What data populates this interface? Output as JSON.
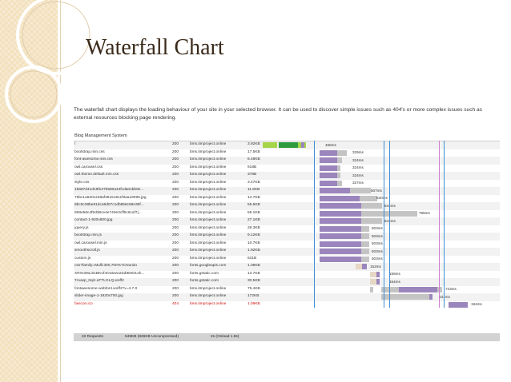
{
  "slide": {
    "title": "Waterfall Chart",
    "description": "The waterfall chart displays the loading behaviour of your site in your selected browser. It can be used to discover simple issues such as 404's or more complex issues such as external resources blocking page rendering.",
    "section_label": "Blog Management System"
  },
  "colors": {
    "background_band": "#f3e1bd",
    "dns": "#a6d54a",
    "connect": "#2e9b3f",
    "wait": "#9b85bd",
    "receive": "#c4c4c4",
    "blocked": "#e6d8c5",
    "error": "#d01010"
  },
  "requests": [
    {
      "name": "/",
      "status": "200",
      "domain": "bms.itmproject.online",
      "size": "3.92KB",
      "time": "486ms"
    },
    {
      "name": "bootstrap.min.css",
      "status": "200",
      "domain": "bms.itmproject.online",
      "size": "17.5KB",
      "time": "329ms"
    },
    {
      "name": "font-awesome.min.css",
      "status": "200",
      "domain": "bms.itmproject.online",
      "size": "6.48KB",
      "time": "324ms"
    },
    {
      "name": "owl.carousel.css",
      "status": "200",
      "domain": "bms.itmproject.online",
      "size": "918B",
      "time": "324ms"
    },
    {
      "name": "owl.theme.default.min.css",
      "status": "200",
      "domain": "bms.itmproject.online",
      "size": "378B",
      "time": "324ms"
    },
    {
      "name": "style.css",
      "status": "200",
      "domain": "bms.itmproject.online",
      "size": "3.47KB",
      "time": "327ms"
    },
    {
      "name": "1b687d41d18fe27b580a43fcda01bb9e...",
      "status": "200",
      "domain": "bms.itmproject.online",
      "size": "11.6KB",
      "time": "507ms"
    },
    {
      "name": "76bc1a630c238af38151811f9aa19095.jpg",
      "status": "200",
      "domain": "bms.itmproject.online",
      "size": "14.7KB",
      "time": "530ms"
    },
    {
      "name": "8bc5c38be81dca9d07c1db858c69e39f...",
      "status": "200",
      "domain": "bms.itmproject.online",
      "size": "55.5KB",
      "time": "544ms"
    },
    {
      "name": "808e58c4f9d38ce4e740e3cff5c6caf7j...",
      "status": "200",
      "domain": "bms.itmproject.online",
      "size": "59.1KB",
      "time": "785ms"
    },
    {
      "name": "contact-1-920x600.jpg",
      "status": "200",
      "domain": "bms.itmproject.online",
      "size": "27.1KB",
      "time": "544ms"
    },
    {
      "name": "jquery.js",
      "status": "200",
      "domain": "bms.itmproject.online",
      "size": "28.3KB",
      "time": "503ms"
    },
    {
      "name": "bootstrap.min.js",
      "status": "200",
      "domain": "bms.itmproject.online",
      "size": "9.12KB",
      "time": "503ms"
    },
    {
      "name": "owl.carousel.min.js",
      "status": "200",
      "domain": "bms.itmproject.online",
      "size": "10.7KB",
      "time": "503ms"
    },
    {
      "name": "smoothscroll.js",
      "status": "200",
      "domain": "bms.itmproject.online",
      "size": "1.92KB",
      "time": "503ms"
    },
    {
      "name": "custom.js",
      "status": "200",
      "domain": "bms.itmproject.online",
      "size": "631B",
      "time": "503ms"
    },
    {
      "name": "css?family=Mulli:300,700%7CNunito",
      "status": "200",
      "domain": "fonts.googleapis.com",
      "size": "1.08KB",
      "time": "152ms"
    },
    {
      "name": "XRXI3I6Li01BKof4Ou5wU2ZdIBHDLsh...",
      "status": "200",
      "domain": "fonts.gstatic.com",
      "size": "13.7KB",
      "time": "156ms"
    },
    {
      "name": "7Auwp_0qiz-aTTLGLQ.woff2",
      "status": "200",
      "domain": "fonts.gstatic.com",
      "size": "30.5KB",
      "time": "154ms"
    },
    {
      "name": "fontawesome-webfont.woff2?v=4.7.0",
      "status": "200",
      "domain": "bms.itmproject.online",
      "size": "75.4KB",
      "time": "723ms"
    },
    {
      "name": "slider-image-1-1920x700.jpg",
      "status": "200",
      "domain": "bms.itmproject.online",
      "size": "172KB",
      "time": "531ms"
    },
    {
      "name": "favicon.ico",
      "status": "404",
      "domain": "bms.itmproject.online",
      "size": "1.09KB",
      "time": "194ms",
      "error": true
    }
  ],
  "summary": {
    "requests": "22 Requests",
    "size": "549KB (826KB Uncompressed)",
    "time": "2s (Onload 1.8s)"
  }
}
